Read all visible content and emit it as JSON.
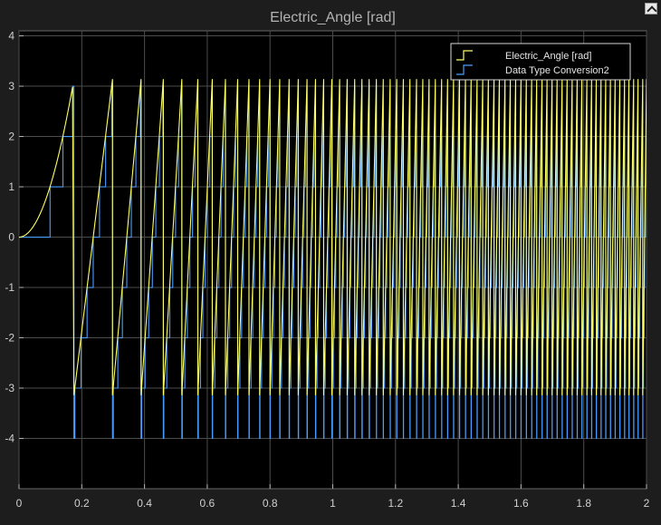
{
  "window": {
    "title": "Electric_Angle [rad]",
    "background": "#000000",
    "frame_color": "#1d1d1d"
  },
  "toolbar": {
    "dock_icon": "undock-arrow-icon"
  },
  "chart_data": {
    "type": "line",
    "title": "Electric_Angle [rad]",
    "xlabel": "",
    "ylabel": "",
    "xlim": [
      0,
      2
    ],
    "ylim": [
      -5,
      4.1
    ],
    "xticks": [
      0,
      0.2,
      0.4,
      0.6,
      0.8,
      1,
      1.2,
      1.4,
      1.6,
      1.8,
      2
    ],
    "xtick_labels": [
      "0",
      "0.2",
      "0.4",
      "0.6",
      "0.8",
      "1",
      "1.2",
      "1.4",
      "1.6",
      "1.8",
      "2"
    ],
    "yticks": [
      -4,
      -3,
      -2,
      -1,
      0,
      1,
      2,
      3,
      4
    ],
    "ytick_labels": [
      "-4",
      "-3",
      "-2",
      "-1",
      "0",
      "1",
      "2",
      "3",
      "4"
    ],
    "grid": true,
    "legend_position": "top-right",
    "wrap_times": [
      0.175,
      0.298,
      0.389,
      0.46,
      0.519,
      0.57,
      0.616,
      0.658,
      0.697,
      0.733,
      0.767,
      0.8,
      0.831,
      0.861,
      0.89,
      0.918,
      0.945,
      0.971,
      0.997,
      1.022,
      1.046,
      1.07,
      1.093,
      1.116,
      1.139,
      1.161,
      1.183,
      1.204,
      1.225,
      1.246,
      1.267,
      1.287,
      1.307,
      1.327,
      1.347,
      1.366,
      1.385,
      1.404,
      1.423,
      1.441,
      1.46,
      1.478,
      1.496,
      1.514,
      1.531,
      1.549,
      1.566,
      1.583,
      1.6,
      1.617,
      1.634,
      1.65,
      1.667,
      1.683,
      1.699,
      1.715,
      1.731,
      1.747,
      1.763,
      1.779,
      1.794,
      1.81,
      1.825,
      1.84,
      1.855,
      1.87,
      1.885,
      1.9,
      1.915,
      1.93,
      1.944,
      1.959,
      1.973,
      1.988,
      2.0
    ],
    "series": [
      {
        "name": "Electric_Angle [rad]",
        "color": "#ffff66",
        "kind": "sawtooth",
        "min": -3.14159,
        "max": 3.14159,
        "start_value": 0,
        "start_shape": "quadratic"
      },
      {
        "name": "Data Type Conversion2",
        "color": "#4a9eff",
        "kind": "staircase",
        "description_levels": [
          -4,
          -3,
          -2,
          -1,
          0,
          1,
          2,
          3
        ],
        "rule": "floor of Electric_Angle"
      }
    ]
  }
}
